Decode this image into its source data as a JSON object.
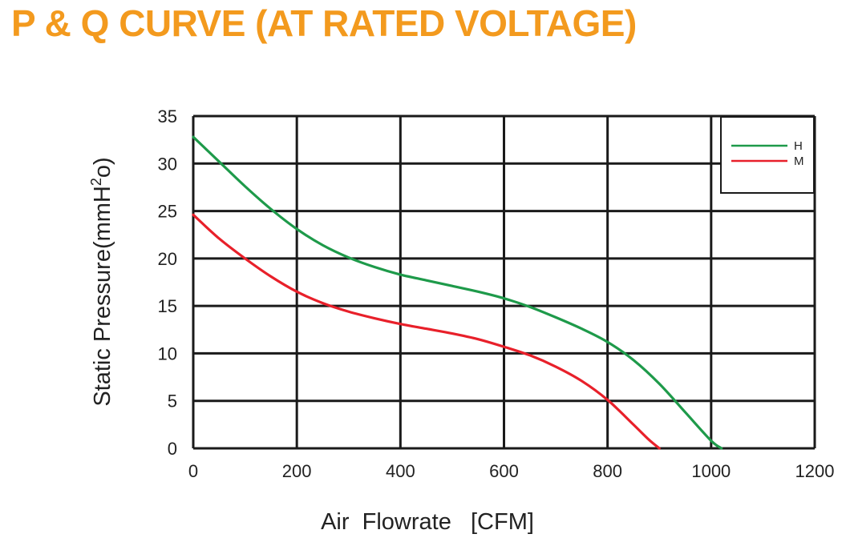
{
  "header": {
    "title": "P & Q CURVE (AT RATED VOLTAGE)"
  },
  "colors": {
    "title": "#F39A1E",
    "grid": "#1a1a1a",
    "series_H": "#1E9A4A",
    "series_M": "#E8202A"
  },
  "chart_data": {
    "type": "line",
    "title": "P & Q CURVE (AT RATED VOLTAGE)",
    "xlabel": "Air  Flowrate   [CFM]",
    "ylabel_main": "Static Pressure(mmH",
    "ylabel_sup": "2",
    "ylabel_end": "o)",
    "xlim": [
      0,
      1200
    ],
    "ylim": [
      0,
      35
    ],
    "xticks": [
      "0",
      "200",
      "400",
      "600",
      "800",
      "1000",
      "1200"
    ],
    "yticks": [
      "0",
      "5",
      "10",
      "15",
      "20",
      "25",
      "30",
      "35"
    ],
    "grid": true,
    "legend_position": "top-right",
    "series": [
      {
        "name": "H",
        "color": "#1E9A4A",
        "x": [
          0,
          50,
          100,
          150,
          200,
          250,
          300,
          350,
          400,
          450,
          500,
          550,
          600,
          650,
          700,
          750,
          800,
          850,
          900,
          950,
          1000,
          1020
        ],
        "y": [
          32.8,
          30.2,
          27.6,
          25.2,
          23.1,
          21.4,
          20.1,
          19.1,
          18.3,
          17.7,
          17.1,
          16.5,
          15.8,
          14.9,
          13.8,
          12.6,
          11.2,
          9.3,
          6.8,
          3.8,
          0.8,
          0
        ]
      },
      {
        "name": "M",
        "color": "#E8202A",
        "x": [
          0,
          50,
          100,
          150,
          200,
          250,
          300,
          350,
          400,
          450,
          500,
          550,
          600,
          650,
          700,
          750,
          800,
          850,
          880,
          900
        ],
        "y": [
          24.6,
          22.1,
          20.0,
          18.1,
          16.5,
          15.3,
          14.4,
          13.7,
          13.1,
          12.6,
          12.1,
          11.5,
          10.7,
          9.8,
          8.6,
          7.1,
          5.1,
          2.5,
          0.9,
          0
        ]
      }
    ]
  }
}
